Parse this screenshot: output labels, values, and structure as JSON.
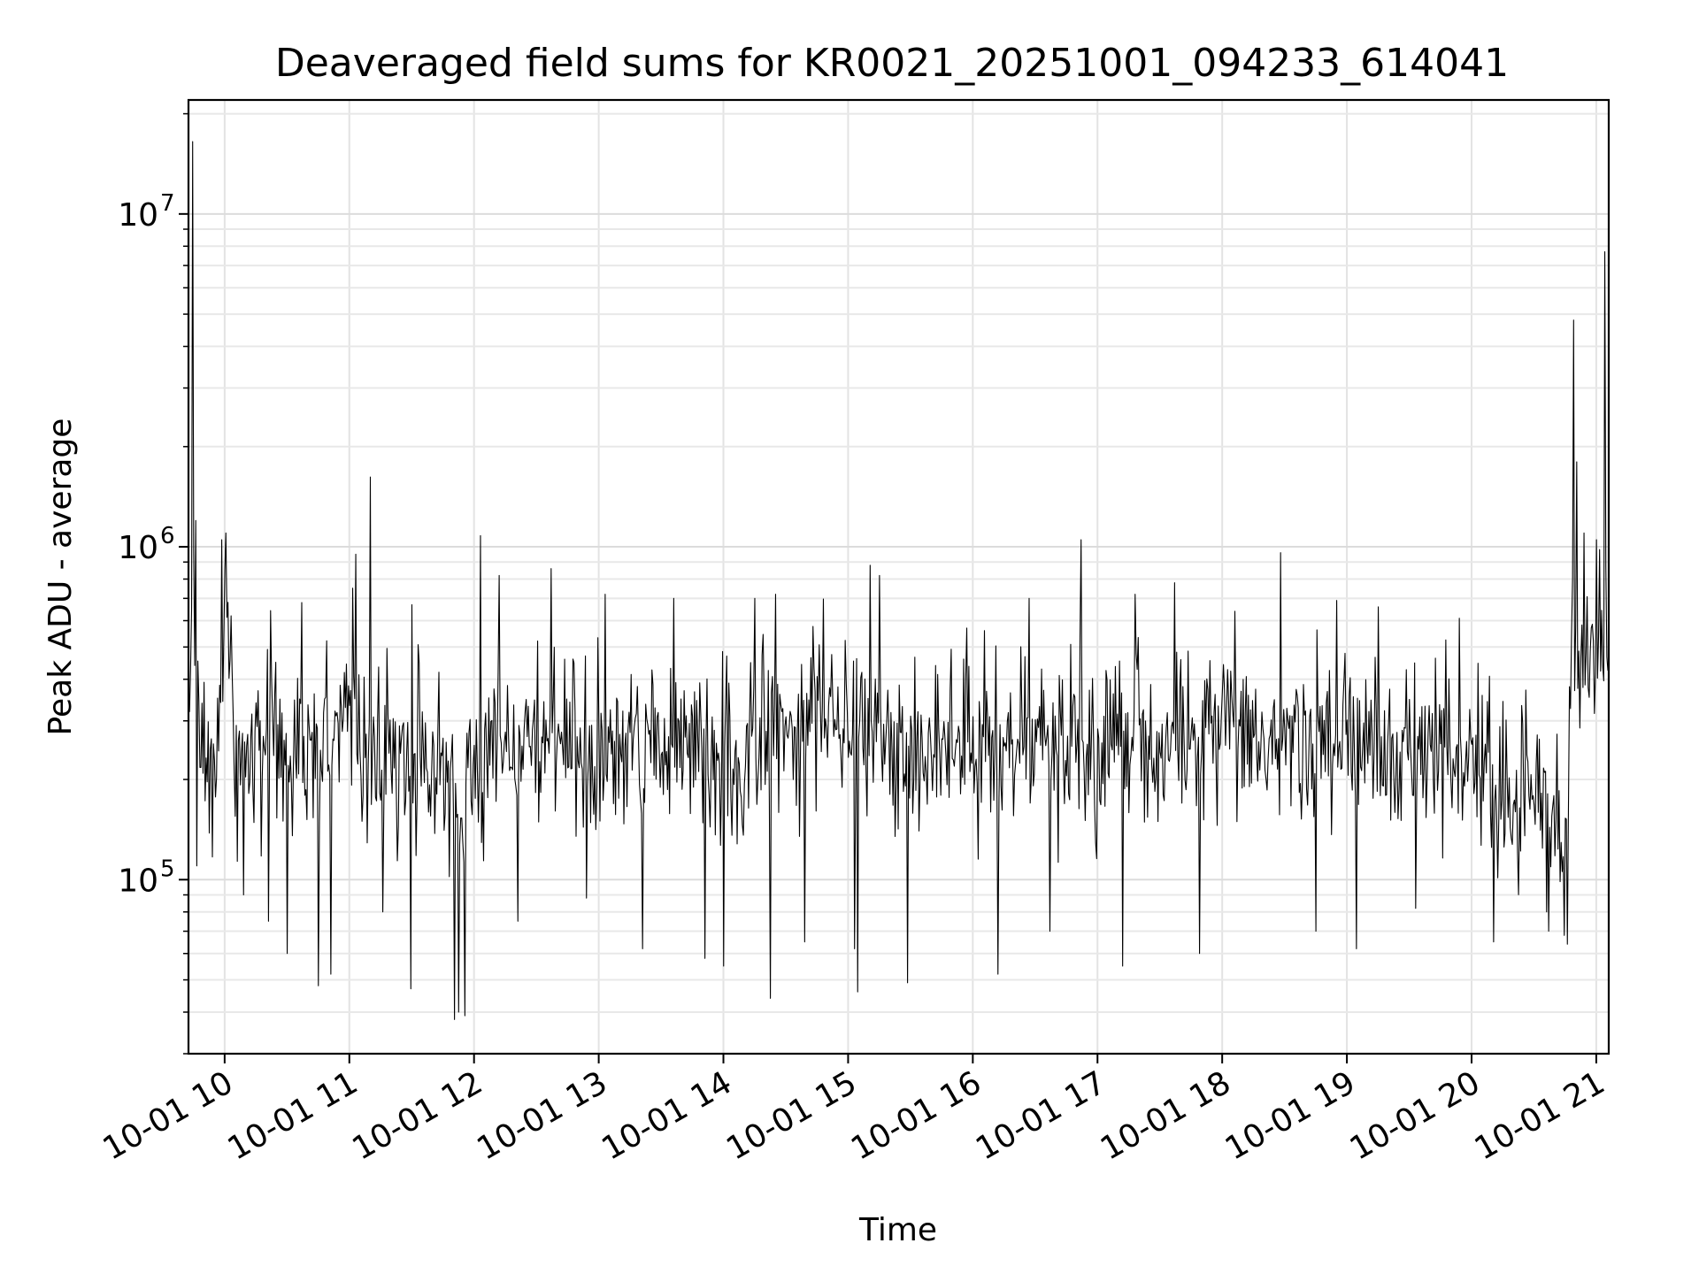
{
  "chart_data": {
    "type": "line",
    "title": "Deaveraged field sums for KR0021_20251001_094233_614041",
    "xlabel": "Time",
    "ylabel": "Peak ADU - average",
    "yscale": "log",
    "ylim": [
      30000,
      22000000
    ],
    "xlim_hours": [
      9.71,
      21.1
    ],
    "grid": true,
    "x_tick_labels": [
      "10-01 10",
      "10-01 11",
      "10-01 12",
      "10-01 13",
      "10-01 14",
      "10-01 15",
      "10-01 16",
      "10-01 17",
      "10-01 18",
      "10-01 19",
      "10-01 20",
      "10-01 21"
    ],
    "x_tick_hours": [
      10,
      11,
      12,
      13,
      14,
      15,
      16,
      17,
      18,
      19,
      20,
      21
    ],
    "y_ticks": [
      {
        "base": "10",
        "exp": "5",
        "value": 100000
      },
      {
        "base": "10",
        "exp": "6",
        "value": 1000000
      },
      {
        "base": "10",
        "exp": "7",
        "value": 10000000
      }
    ],
    "series": [
      {
        "name": "Deaveraged field sum",
        "color": "#000000",
        "sampling_minutes": 0.5,
        "baseline": [
          [
            9.71,
            320000
          ],
          [
            9.75,
            600000
          ],
          [
            9.8,
            280000
          ],
          [
            9.95,
            230000
          ],
          [
            10.0,
            700000
          ],
          [
            10.05,
            450000
          ],
          [
            10.1,
            240000
          ],
          [
            10.5,
            240000
          ],
          [
            10.8,
            270000
          ],
          [
            11.0,
            380000
          ],
          [
            11.1,
            240000
          ],
          [
            11.5,
            230000
          ],
          [
            11.8,
            210000
          ],
          [
            11.9,
            150000
          ],
          [
            12.0,
            230000
          ],
          [
            12.3,
            270000
          ],
          [
            12.7,
            260000
          ],
          [
            13.0,
            230000
          ],
          [
            13.3,
            250000
          ],
          [
            13.6,
            260000
          ],
          [
            14.0,
            210000
          ],
          [
            14.4,
            300000
          ],
          [
            14.8,
            320000
          ],
          [
            15.1,
            330000
          ],
          [
            15.3,
            260000
          ],
          [
            16.0,
            260000
          ],
          [
            16.5,
            250000
          ],
          [
            17.0,
            255000
          ],
          [
            17.5,
            255000
          ],
          [
            18.0,
            260000
          ],
          [
            18.5,
            250000
          ],
          [
            19.0,
            250000
          ],
          [
            19.5,
            240000
          ],
          [
            20.0,
            230000
          ],
          [
            20.3,
            180000
          ],
          [
            20.6,
            170000
          ],
          [
            20.75,
            150000
          ],
          [
            20.8,
            500000
          ],
          [
            21.1,
            520000
          ]
        ],
        "spikes": [
          [
            9.74,
            16500000
          ],
          [
            9.77,
            1200000
          ],
          [
            9.78,
            110000
          ],
          [
            9.98,
            1050000
          ],
          [
            10.01,
            1100000
          ],
          [
            10.15,
            90000
          ],
          [
            10.35,
            75000
          ],
          [
            10.5,
            60000
          ],
          [
            10.62,
            680000
          ],
          [
            10.75,
            48000
          ],
          [
            10.85,
            52000
          ],
          [
            11.05,
            950000
          ],
          [
            11.17,
            1620000
          ],
          [
            11.27,
            80000
          ],
          [
            11.49,
            47000
          ],
          [
            11.5,
            670000
          ],
          [
            11.84,
            38000
          ],
          [
            11.88,
            40000
          ],
          [
            11.93,
            39000
          ],
          [
            12.05,
            1080000
          ],
          [
            12.2,
            820000
          ],
          [
            12.35,
            75000
          ],
          [
            12.62,
            860000
          ],
          [
            12.9,
            88000
          ],
          [
            13.05,
            720000
          ],
          [
            13.35,
            62000
          ],
          [
            13.6,
            700000
          ],
          [
            13.85,
            58000
          ],
          [
            14.0,
            55000
          ],
          [
            14.25,
            700000
          ],
          [
            14.38,
            44000
          ],
          [
            14.42,
            720000
          ],
          [
            14.65,
            65000
          ],
          [
            15.05,
            62000
          ],
          [
            15.08,
            46000
          ],
          [
            15.18,
            880000
          ],
          [
            15.25,
            820000
          ],
          [
            15.48,
            49000
          ],
          [
            15.7,
            440000
          ],
          [
            15.95,
            570000
          ],
          [
            16.2,
            52000
          ],
          [
            16.45,
            700000
          ],
          [
            16.62,
            70000
          ],
          [
            16.87,
            1050000
          ],
          [
            17.2,
            55000
          ],
          [
            17.3,
            720000
          ],
          [
            17.62,
            780000
          ],
          [
            17.82,
            60000
          ],
          [
            18.1,
            640000
          ],
          [
            18.47,
            960000
          ],
          [
            18.75,
            70000
          ],
          [
            18.92,
            690000
          ],
          [
            19.08,
            62000
          ],
          [
            19.25,
            660000
          ],
          [
            19.55,
            82000
          ],
          [
            19.9,
            610000
          ],
          [
            20.18,
            65000
          ],
          [
            20.6,
            80000
          ],
          [
            20.74,
            68000
          ],
          [
            20.77,
            64000
          ],
          [
            20.82,
            4800000
          ],
          [
            20.84,
            1800000
          ],
          [
            20.9,
            1100000
          ],
          [
            21.0,
            1050000
          ],
          [
            21.07,
            7700000
          ]
        ]
      }
    ]
  }
}
